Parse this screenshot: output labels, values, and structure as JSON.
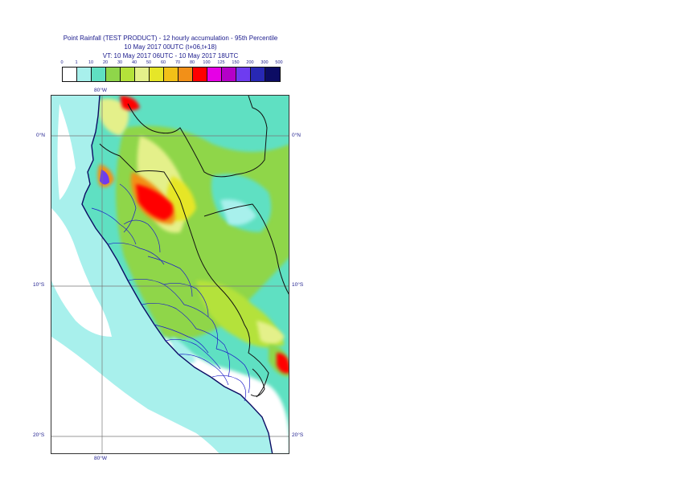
{
  "header": {
    "line1": "Point Rainfall (TEST PRODUCT) - 12 hourly accumulation - 95th Percentile",
    "line2": "10 May 2017 00UTC (t+06,t+18)",
    "line3": "VT: 10 May 2017 06UTC - 10 May 2017 18UTC"
  },
  "legend": {
    "values": [
      "0",
      "1",
      "10",
      "20",
      "30",
      "40",
      "50",
      "60",
      "70",
      "80",
      "100",
      "125",
      "150",
      "200",
      "300",
      "500"
    ],
    "colors": [
      "#ffffff",
      "#a8f0ec",
      "#5fe0c2",
      "#8fd64a",
      "#b4e23a",
      "#e4f08a",
      "#e6e628",
      "#f2c018",
      "#f29018",
      "#ff0000",
      "#e600e6",
      "#b400c8",
      "#6e3cf0",
      "#2828b4",
      "#0c0c64"
    ]
  },
  "map": {
    "lon_top": "80°W",
    "lon_bottom": "80°W",
    "lat_labels": [
      "0°N",
      "10°S",
      "20°S"
    ],
    "colors": {
      "ocean": "#a8f0ec",
      "coast": "#0c0c64",
      "border": "#111111",
      "admin": "#1e1ec8",
      "grid": "#777777"
    }
  }
}
